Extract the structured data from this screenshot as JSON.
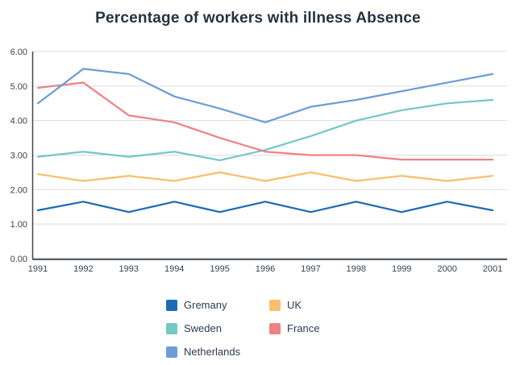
{
  "page": {
    "title": "Percentage of workers with illness Absence"
  },
  "colors": {
    "background": "#ffffff",
    "title_text": "#273142",
    "tick_text": "#39424e",
    "gridline": "#dbdde2",
    "axis": "#44464b"
  },
  "chart_data": {
    "type": "line",
    "title": "Percentage of workers with illness Absence",
    "x": [
      "1991",
      "1992",
      "1993",
      "1994",
      "1995",
      "1996",
      "1997",
      "1998",
      "1999",
      "2000",
      "2001"
    ],
    "xlabel": "",
    "ylabel": "",
    "ylim": [
      0,
      6
    ],
    "ytick_labels": [
      "0.00",
      "1.00",
      "2.00",
      "3.00",
      "4.00",
      "5.00",
      "6.00"
    ],
    "grid": true,
    "legend_position": "bottom",
    "series": [
      {
        "name": "Gremany",
        "color": "#1f6bb5",
        "values": [
          1.4,
          1.65,
          1.35,
          1.65,
          1.35,
          1.65,
          1.35,
          1.65,
          1.35,
          1.65,
          1.4
        ]
      },
      {
        "name": "UK",
        "color": "#f9bf6d",
        "values": [
          2.45,
          2.25,
          2.4,
          2.25,
          2.5,
          2.25,
          2.5,
          2.25,
          2.4,
          2.25,
          2.4
        ]
      },
      {
        "name": "Sweden",
        "color": "#74c8c6",
        "values": [
          2.95,
          3.1,
          2.95,
          3.1,
          2.85,
          3.15,
          3.55,
          4.0,
          4.3,
          4.5,
          4.6
        ]
      },
      {
        "name": "France",
        "color": "#ef8282",
        "values": [
          4.95,
          5.1,
          4.15,
          3.95,
          3.5,
          3.1,
          3.0,
          3.0,
          2.87,
          2.87,
          2.87
        ]
      },
      {
        "name": "Netherlands",
        "color": "#6d9dd6",
        "values": [
          4.5,
          5.5,
          5.35,
          4.7,
          4.35,
          3.95,
          4.4,
          4.6,
          4.85,
          5.1,
          5.35
        ]
      }
    ]
  }
}
